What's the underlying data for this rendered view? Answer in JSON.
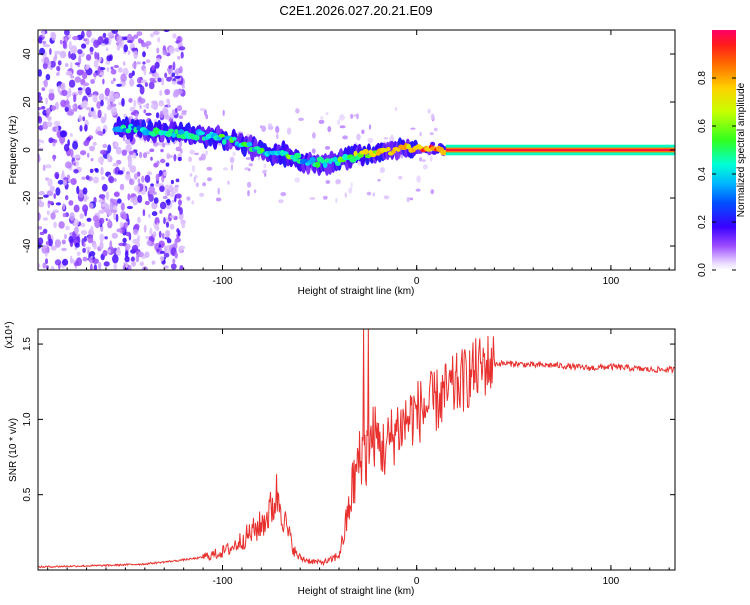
{
  "title": "C2E1.2026.027.20.21.E09",
  "chart_data": [
    {
      "type": "heatmap",
      "xlabel": "Height of straight line (km)",
      "ylabel": "Frequency (Hz)",
      "xlim": [
        -195,
        133
      ],
      "ylim": [
        -50,
        50
      ],
      "xticks": [
        -100,
        0,
        100
      ],
      "yticks": [
        -40,
        -20,
        0,
        20,
        40
      ],
      "colorbar": {
        "label": "Normalized spectral amplitude",
        "range": [
          0,
          1
        ],
        "ticks": [
          0.0,
          0.2,
          0.4,
          0.6,
          0.8
        ]
      },
      "ridge": [
        {
          "x": -155,
          "freq": 9,
          "amp": 0.35
        },
        {
          "x": -140,
          "freq": 8,
          "amp": 0.4
        },
        {
          "x": -125,
          "freq": 7,
          "amp": 0.4
        },
        {
          "x": -110,
          "freq": 6,
          "amp": 0.45
        },
        {
          "x": -95,
          "freq": 4,
          "amp": 0.45
        },
        {
          "x": -85,
          "freq": 1,
          "amp": 0.45
        },
        {
          "x": -75,
          "freq": -1,
          "amp": 0.45
        },
        {
          "x": -65,
          "freq": -2,
          "amp": 0.5
        },
        {
          "x": -58,
          "freq": -5,
          "amp": 0.4
        },
        {
          "x": -50,
          "freq": -5,
          "amp": 0.45
        },
        {
          "x": -40,
          "freq": -5,
          "amp": 0.5
        },
        {
          "x": -30,
          "freq": -2,
          "amp": 0.6
        },
        {
          "x": -20,
          "freq": -1,
          "amp": 0.7
        },
        {
          "x": -10,
          "freq": 0,
          "amp": 0.8
        },
        {
          "x": 0,
          "freq": 1,
          "amp": 0.8
        },
        {
          "x": 5,
          "freq": 1,
          "amp": 0.85
        },
        {
          "x": 15,
          "freq": 0,
          "amp": 0.9
        },
        {
          "x": 133,
          "freq": 0,
          "amp": 0.95
        }
      ]
    },
    {
      "type": "line",
      "xlabel": "Height of straight line (km)",
      "ylabel": "SNR (10 * v/v)",
      "yscale_label": "(x10⁴)",
      "xlim": [
        -195,
        133
      ],
      "ylim": [
        0,
        1.6
      ],
      "xticks": [
        -100,
        0,
        100
      ],
      "yticks": [
        0.5,
        1.0,
        1.5
      ],
      "series": [
        {
          "name": "SNR",
          "color": "#e8312e",
          "x": [
            -195,
            -180,
            -160,
            -140,
            -125,
            -112,
            -105,
            -100,
            -95,
            -90,
            -85,
            -80,
            -75,
            -72,
            -70,
            -68,
            -65,
            -62,
            -60,
            -55,
            -50,
            -45,
            -40,
            -38,
            -35,
            -33,
            -30,
            -28,
            -26,
            -24,
            -22,
            -20,
            -17,
            -14,
            -12,
            -10,
            -8,
            -5,
            0,
            5,
            10,
            15,
            20,
            25,
            30,
            35,
            40,
            50,
            60,
            70,
            80,
            90,
            100,
            110,
            120,
            133
          ],
          "values": [
            0.02,
            0.025,
            0.03,
            0.04,
            0.06,
            0.08,
            0.1,
            0.12,
            0.15,
            0.2,
            0.25,
            0.3,
            0.4,
            0.5,
            0.45,
            0.32,
            0.2,
            0.1,
            0.08,
            0.06,
            0.05,
            0.06,
            0.1,
            0.2,
            0.4,
            0.55,
            0.7,
            0.8,
            0.75,
            0.85,
            0.9,
            0.85,
            0.8,
            0.85,
            0.9,
            0.95,
            0.95,
            1.0,
            1.05,
            1.08,
            1.12,
            1.17,
            1.22,
            1.27,
            1.32,
            1.36,
            1.37,
            1.37,
            1.36,
            1.36,
            1.35,
            1.34,
            1.35,
            1.34,
            1.33,
            1.33
          ]
        }
      ]
    }
  ]
}
